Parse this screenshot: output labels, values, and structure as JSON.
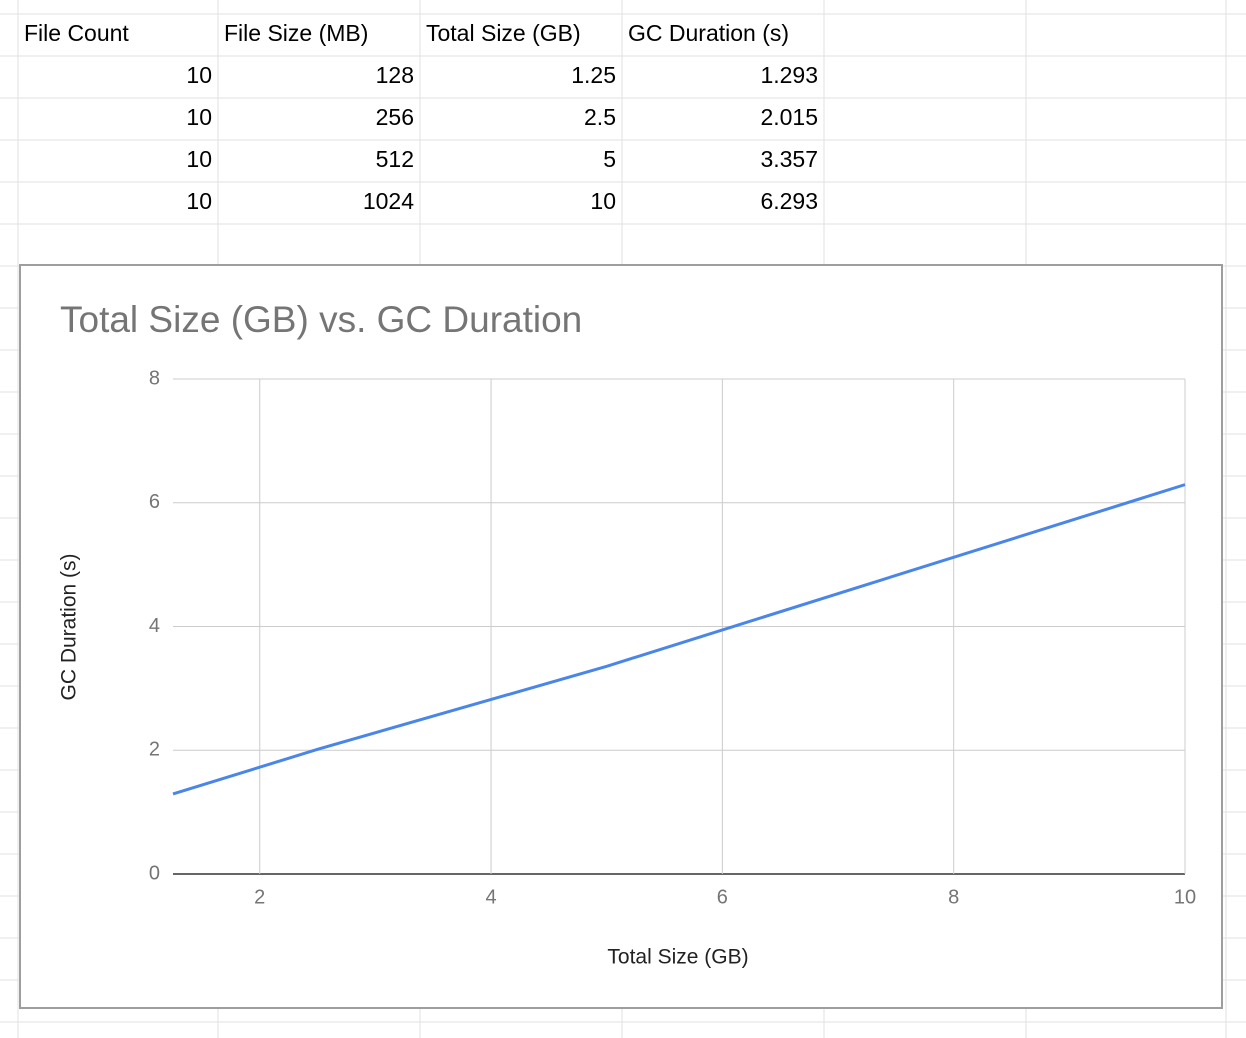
{
  "table": {
    "header": [
      "File Count",
      "File Size (MB)",
      "Total Size (GB)",
      "GC Duration (s)"
    ],
    "rows": [
      [
        "10",
        "128",
        "1.25",
        "1.293"
      ],
      [
        "10",
        "256",
        "2.5",
        "2.015"
      ],
      [
        "10",
        "512",
        "5",
        "3.357"
      ],
      [
        "10",
        "1024",
        "10",
        "6.293"
      ]
    ]
  },
  "chart_data": {
    "type": "line",
    "title": "Total Size (GB) vs. GC Duration",
    "x_label": "Total Size (GB)",
    "y_label": "GC Duration (s)",
    "x": [
      1.25,
      2.5,
      5,
      10
    ],
    "values": [
      1.293,
      2.015,
      3.357,
      6.293
    ],
    "color": "#4a86e8",
    "xlim": [
      1.25,
      10
    ],
    "ylim": [
      0,
      8
    ],
    "xticks": [
      2,
      4,
      6,
      8,
      10
    ],
    "yticks": [
      0,
      2,
      4,
      6,
      8
    ],
    "grid": true
  }
}
